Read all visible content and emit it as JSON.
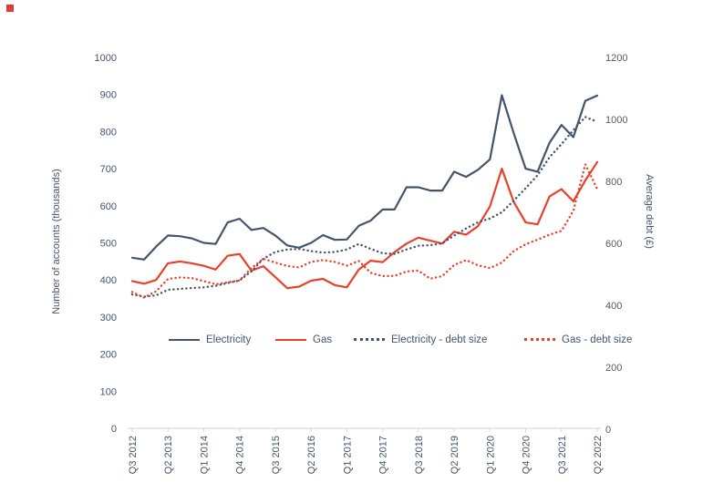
{
  "marker_color": "#e03c31",
  "chart_data": {
    "type": "line",
    "title": "",
    "grid": false,
    "legend_position": "inside-bottom",
    "x_categories": [
      "Q3 2012",
      "Q4 2012",
      "Q1 2013",
      "Q2 2013",
      "Q3 2013",
      "Q4 2013",
      "Q1 2014",
      "Q2 2014",
      "Q3 2014",
      "Q4 2014",
      "Q1 2015",
      "Q2 2015",
      "Q3 2015",
      "Q4 2015",
      "Q1 2016",
      "Q2 2016",
      "Q3 2016",
      "Q4 2016",
      "Q1 2017",
      "Q2 2017",
      "Q3 2017",
      "Q4 2017",
      "Q1 2018",
      "Q2 2018",
      "Q3 2018",
      "Q4 2018",
      "Q1 2019",
      "Q2 2019",
      "Q3 2019",
      "Q4 2019",
      "Q1 2020",
      "Q2 2020",
      "Q3 2020",
      "Q4 2020",
      "Q1 2021",
      "Q2 2021",
      "Q3 2021",
      "Q4 2021",
      "Q1 2022",
      "Q2 2022"
    ],
    "x_tick_labels": [
      "Q3 2012",
      "Q2 2013",
      "Q1 2014",
      "Q4 2014",
      "Q3 2015",
      "Q2 2016",
      "Q1 2017",
      "Q4 2017",
      "Q3 2018",
      "Q2 2019",
      "Q1 2020",
      "Q4 2020",
      "Q3 2021",
      "Q2 2022"
    ],
    "x_tick_every": 3,
    "left_axis": {
      "label": "Number of accounts (thousands)",
      "min": 0,
      "max": 1000,
      "ticks": [
        0,
        100,
        200,
        300,
        400,
        500,
        600,
        700,
        800,
        900,
        1000
      ]
    },
    "right_axis": {
      "label": "Average debt (£)",
      "min": 0,
      "max": 1200,
      "ticks": [
        0,
        200,
        400,
        600,
        800,
        1000,
        1200
      ]
    },
    "series": [
      {
        "name": "Electricity",
        "axis": "left",
        "style": "solid",
        "color": "#44546A",
        "values": [
          460,
          455,
          490,
          520,
          518,
          512,
          500,
          497,
          555,
          565,
          535,
          540,
          520,
          493,
          487,
          500,
          521,
          508,
          509,
          546,
          560,
          590,
          590,
          650,
          650,
          641,
          641,
          692,
          678,
          697,
          725,
          898,
          795,
          700,
          692,
          770,
          818,
          785,
          883,
          897
        ]
      },
      {
        "name": "Gas",
        "axis": "left",
        "style": "solid",
        "color": "#E8412A",
        "values": [
          397,
          390,
          400,
          445,
          450,
          445,
          438,
          428,
          465,
          470,
          425,
          437,
          408,
          378,
          382,
          398,
          403,
          386,
          380,
          428,
          452,
          448,
          475,
          498,
          514,
          506,
          498,
          530,
          522,
          545,
          598,
          700,
          610,
          555,
          550,
          625,
          645,
          612,
          668,
          718
        ]
      },
      {
        "name": "Electricity - debt size",
        "axis": "right",
        "style": "dotted",
        "color": "#44546A",
        "values": [
          435,
          428,
          432,
          450,
          453,
          456,
          458,
          463,
          472,
          480,
          510,
          550,
          572,
          580,
          582,
          575,
          570,
          572,
          580,
          598,
          582,
          568,
          566,
          580,
          592,
          594,
          600,
          625,
          648,
          668,
          680,
          700,
          738,
          778,
          820,
          878,
          920,
          965,
          1008,
          992
        ]
      },
      {
        "name": "Gas - debt size",
        "axis": "right",
        "style": "dotted",
        "color": "#E8412A",
        "values": [
          443,
          425,
          445,
          485,
          490,
          488,
          478,
          468,
          474,
          480,
          520,
          550,
          538,
          527,
          522,
          540,
          546,
          540,
          528,
          543,
          505,
          494,
          495,
          509,
          512,
          486,
          494,
          530,
          546,
          529,
          520,
          538,
          575,
          597,
          612,
          628,
          640,
          705,
          855,
          775
        ]
      }
    ]
  }
}
